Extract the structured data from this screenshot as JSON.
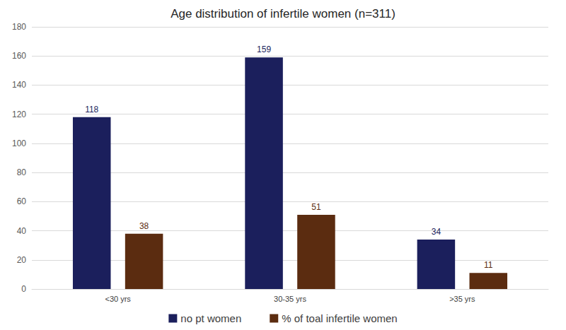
{
  "chart_data": {
    "type": "bar",
    "title": "Age distribution of infertile women (n=311)",
    "categories": [
      "<30 yrs",
      "30-35 yrs",
      ">35 yrs"
    ],
    "series": [
      {
        "name": "no pt women",
        "color": "#1b1f5c",
        "values": [
          118,
          159,
          34
        ]
      },
      {
        "name": "% of toal infertile women",
        "color": "#5b2c10",
        "values": [
          38,
          51,
          11
        ]
      }
    ],
    "ylim": [
      0,
      180
    ],
    "yticks": [
      0,
      20,
      40,
      60,
      80,
      100,
      120,
      140,
      160,
      180
    ],
    "grid": true,
    "legend": "bottom",
    "data_labels": true
  }
}
